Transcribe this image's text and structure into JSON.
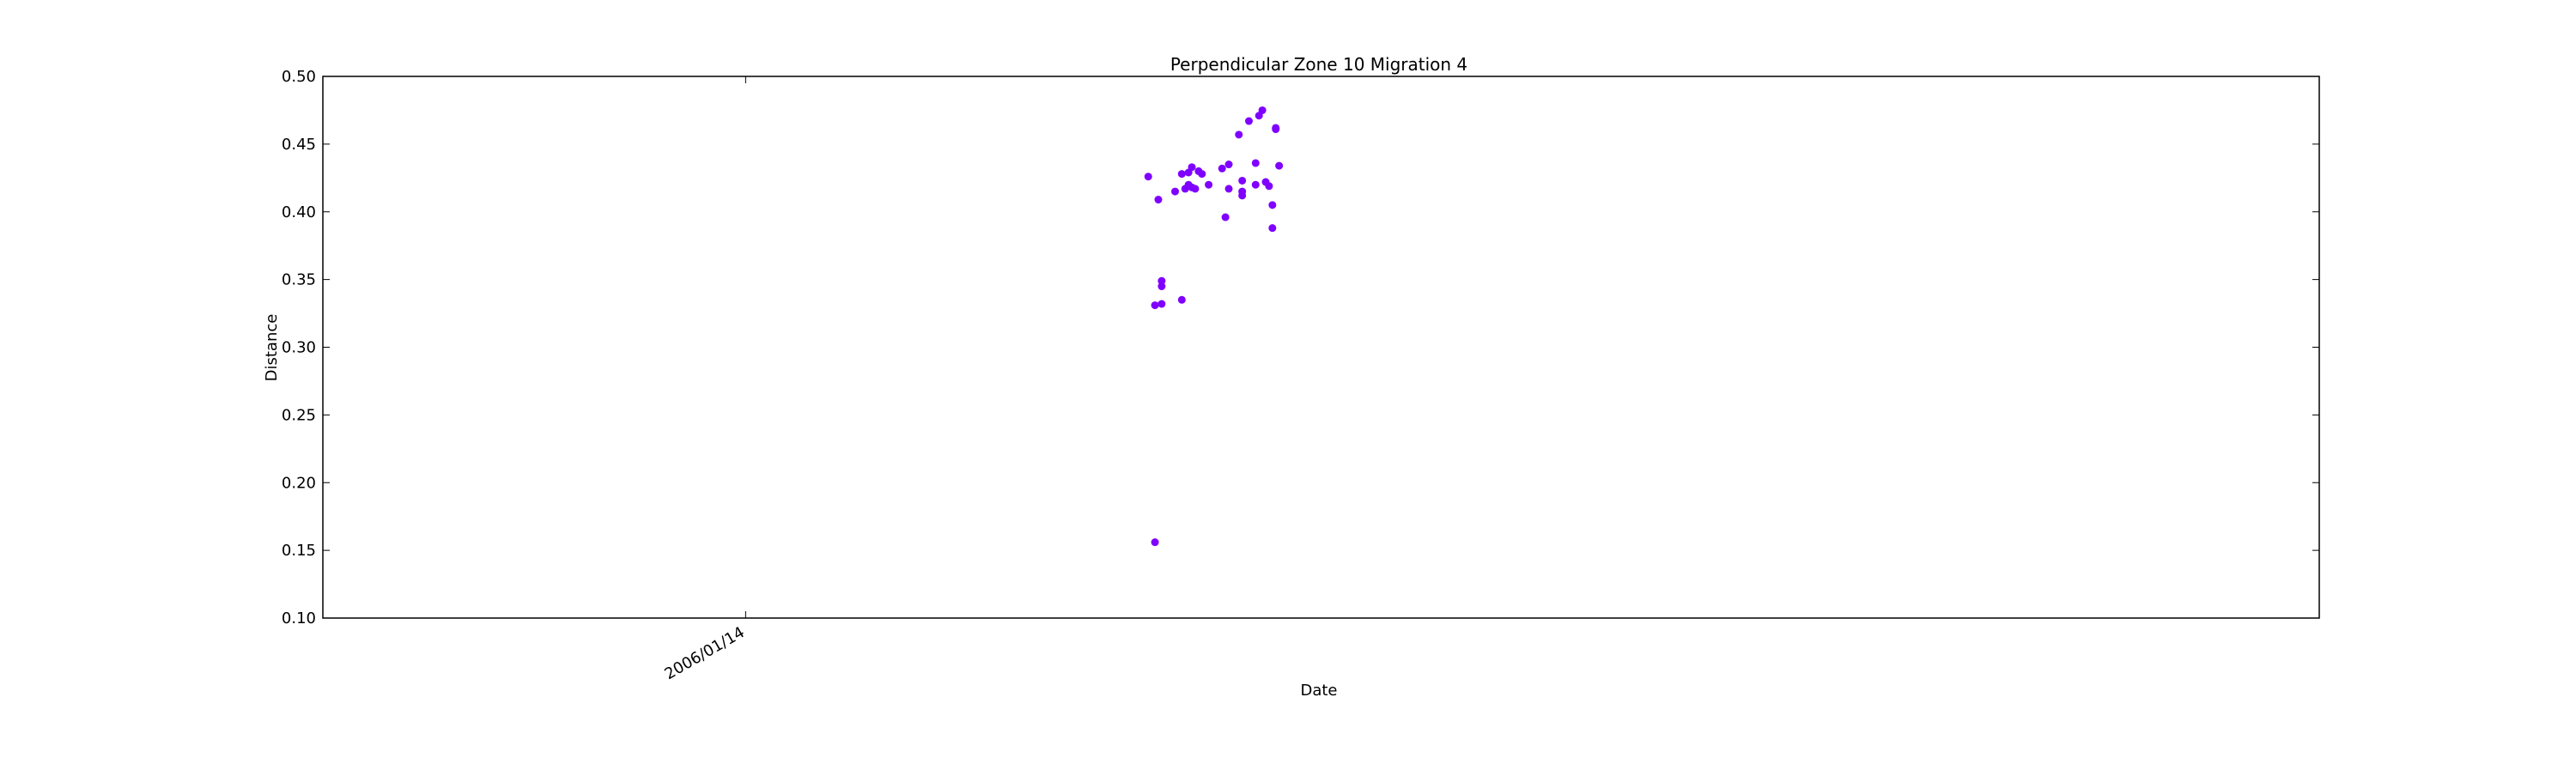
{
  "chart_data": {
    "type": "scatter",
    "title": "Perpendicular Zone 10 Migration 4",
    "xlabel": "Date",
    "ylabel": "Distance",
    "ylim": [
      0.1,
      0.5
    ],
    "yticks": [
      "0.10",
      "0.15",
      "0.20",
      "0.25",
      "0.30",
      "0.35",
      "0.40",
      "0.45",
      "0.50"
    ],
    "xticks": [
      {
        "label": "2006/01/14",
        "x": 0
      }
    ],
    "xlim": [
      -126,
      469
    ],
    "grid": false,
    "marker_color": "#7f00ff",
    "points": [
      {
        "x": 120,
        "y": 0.426
      },
      {
        "x": 122,
        "y": 0.331
      },
      {
        "x": 122,
        "y": 0.156
      },
      {
        "x": 123,
        "y": 0.409
      },
      {
        "x": 124,
        "y": 0.349
      },
      {
        "x": 124,
        "y": 0.345
      },
      {
        "x": 124,
        "y": 0.332
      },
      {
        "x": 128,
        "y": 0.415
      },
      {
        "x": 130,
        "y": 0.428
      },
      {
        "x": 130,
        "y": 0.335
      },
      {
        "x": 131,
        "y": 0.417
      },
      {
        "x": 132,
        "y": 0.429
      },
      {
        "x": 132,
        "y": 0.42
      },
      {
        "x": 133,
        "y": 0.418
      },
      {
        "x": 133,
        "y": 0.433
      },
      {
        "x": 134,
        "y": 0.417
      },
      {
        "x": 135,
        "y": 0.43
      },
      {
        "x": 136,
        "y": 0.428
      },
      {
        "x": 138,
        "y": 0.42
      },
      {
        "x": 142,
        "y": 0.432
      },
      {
        "x": 143,
        "y": 0.396
      },
      {
        "x": 144,
        "y": 0.435
      },
      {
        "x": 144,
        "y": 0.417
      },
      {
        "x": 147,
        "y": 0.457
      },
      {
        "x": 148,
        "y": 0.423
      },
      {
        "x": 148,
        "y": 0.415
      },
      {
        "x": 148,
        "y": 0.412
      },
      {
        "x": 150,
        "y": 0.467
      },
      {
        "x": 152,
        "y": 0.436
      },
      {
        "x": 152,
        "y": 0.42
      },
      {
        "x": 153,
        "y": 0.471
      },
      {
        "x": 154,
        "y": 0.475
      },
      {
        "x": 155,
        "y": 0.422
      },
      {
        "x": 156,
        "y": 0.419
      },
      {
        "x": 157,
        "y": 0.405
      },
      {
        "x": 157,
        "y": 0.388
      },
      {
        "x": 158,
        "y": 0.462
      },
      {
        "x": 158,
        "y": 0.461
      },
      {
        "x": 159,
        "y": 0.434
      }
    ]
  }
}
